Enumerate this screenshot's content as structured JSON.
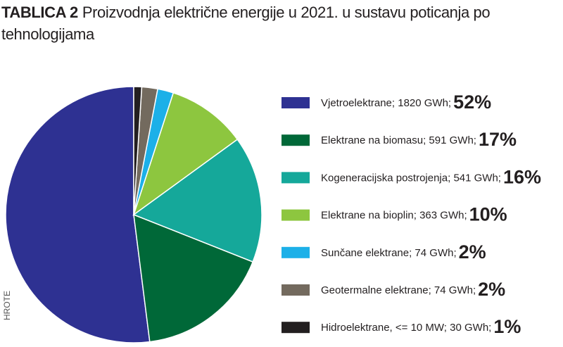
{
  "chart_data": {
    "type": "pie",
    "title_label": "TABLICA 2",
    "title": "Proizvodnja električne energije u 2021. u sustavu poticanja po tehnologijama",
    "source": "HROTE",
    "categories": [
      "Vjetroelektrane; 1820 GWh;",
      "Elektrane na biomasu; 591 GWh;",
      "Kogeneracijska postrojenja; 541 GWh;",
      "Elektrane na bioplin; 363 GWh;",
      "Sunčane elektrane; 74 GWh;",
      "Geotermalne elektrane; 74 GWh;",
      "Hidroelektrane, <= 10 MW; 30 GWh;"
    ],
    "values": [
      52,
      17,
      16,
      10,
      2,
      2,
      1
    ],
    "value_labels": [
      "52%",
      "17%",
      "16%",
      "10%",
      "2%",
      "2%",
      "1%"
    ],
    "colors": [
      "#2e3192",
      "#006838",
      "#15a89a",
      "#8dc63f",
      "#1cb0e8",
      "#736a5e",
      "#231f20"
    ]
  }
}
